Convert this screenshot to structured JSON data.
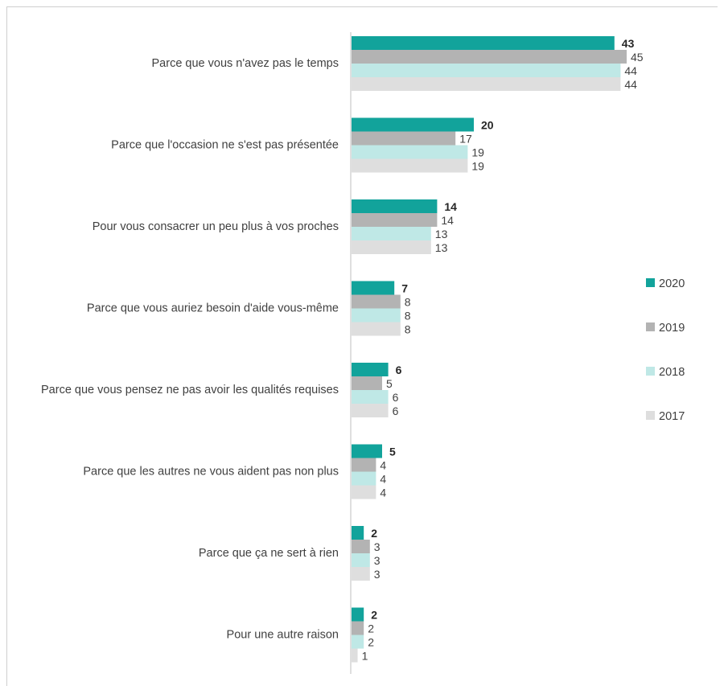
{
  "chart_data": {
    "type": "bar",
    "orientation": "horizontal",
    "categories": [
      "Parce que vous n'avez pas le temps",
      "Parce que l'occasion ne s'est pas présentée",
      "Pour vous consacrer un peu plus à vos proches",
      "Parce que vous auriez besoin d'aide vous-même",
      "Parce que vous pensez ne pas avoir les qualités requises",
      "Parce que les autres ne vous aident pas non plus",
      "Parce que ça ne sert à rien",
      "Pour une autre raison"
    ],
    "series": [
      {
        "name": "2020",
        "color": "#12a39b",
        "values": [
          43,
          20,
          14,
          7,
          6,
          5,
          2,
          2
        ]
      },
      {
        "name": "2019",
        "color": "#b3b3b3",
        "values": [
          45,
          17,
          14,
          8,
          5,
          4,
          3,
          2
        ]
      },
      {
        "name": "2018",
        "color": "#bfe8e6",
        "values": [
          44,
          19,
          13,
          8,
          6,
          4,
          3,
          2
        ]
      },
      {
        "name": "2017",
        "color": "#dedede",
        "values": [
          44,
          19,
          13,
          8,
          6,
          4,
          3,
          1
        ]
      }
    ],
    "bold_series": "2020",
    "xlim": [
      0,
      45
    ],
    "grid": false,
    "legend_position": "right"
  }
}
